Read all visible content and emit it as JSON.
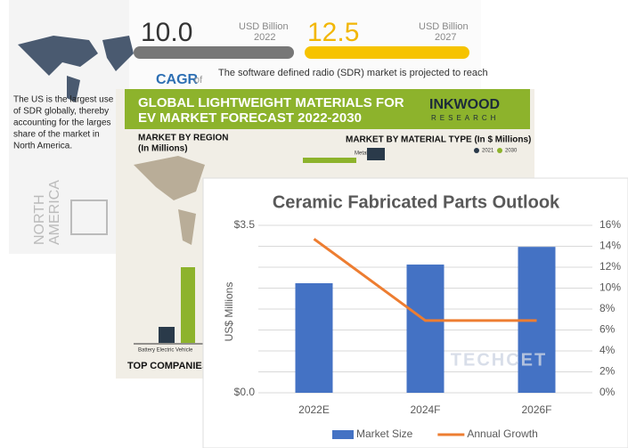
{
  "panels": {
    "sdr": {
      "value_2022": "10.0",
      "unit_2022": "USD Billion",
      "year_2022": "2022",
      "value_2027": "12.5",
      "unit_2027": "USD Billion",
      "year_2027": "2027",
      "cagr": "CAGR",
      "cagr_of": "of",
      "description": "The software defined radio (SDR) market is projected to reach",
      "us_lines": [
        "The US is the largest use",
        "of SDR globally, thereby",
        "accounting for the larges",
        "share of the market in",
        "North America."
      ],
      "region": [
        "NORTH",
        "AMERICA"
      ]
    },
    "lightweight": {
      "title_lines": [
        "GLOBAL LIGHTWEIGHT MATERIALS FOR",
        "EV MARKET FORECAST 2022-2030"
      ],
      "brand": "INKWOOD",
      "brand_sub": "RESEARCH",
      "region_heading": [
        "MARKET BY REGION",
        "(In Millions)"
      ],
      "material_heading": "MARKET BY MATERIAL TYPE (In $ Millions)",
      "material": "Metals",
      "legend": [
        "2021",
        "2030"
      ],
      "vehicle": "Battery Electric Vehicle",
      "companies": "TOP COMPANIES"
    }
  },
  "chart_data": {
    "type": "bar-line",
    "title": "Ceramic Fabricated Parts Outlook",
    "y_label": "US$ Millions",
    "watermark": "TECHCET",
    "categories": [
      "2022E",
      "2024F",
      "2026F"
    ],
    "series": [
      {
        "name": "Market Size",
        "color": "#4472c4",
        "values": [
          2.29,
          2.68,
          3.05
        ]
      },
      {
        "name": "Annual Growth",
        "color": "#ed7d31",
        "axis": "y2",
        "values": [
          14.7,
          6.9,
          6.9
        ]
      }
    ],
    "ylim": [
      0,
      3.5
    ],
    "yticks": [
      {
        "value": 0,
        "label": "$0.0"
      },
      {
        "value": 3.5,
        "label": "$3.5"
      }
    ],
    "y2lim": [
      0,
      16
    ],
    "y2ticks": [
      {
        "value": 0,
        "label": "0%"
      },
      {
        "value": 2,
        "label": "2%"
      },
      {
        "value": 4,
        "label": "4%"
      },
      {
        "value": 6,
        "label": "6%"
      },
      {
        "value": 8,
        "label": "8%"
      },
      {
        "value": 10,
        "label": "10%"
      },
      {
        "value": 12,
        "label": "12%"
      },
      {
        "value": 14,
        "label": "14%"
      },
      {
        "value": 16,
        "label": "16%"
      }
    ],
    "grid": true,
    "legend": "bottom"
  }
}
